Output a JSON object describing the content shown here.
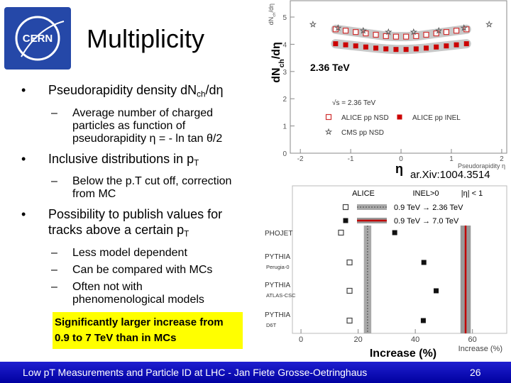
{
  "logo": {
    "text": "CERN"
  },
  "title": "Multiplicity",
  "bullets": [
    {
      "text": "Pseudorapidity density dN",
      "sub": "ch",
      "tail": "/dη",
      "items": [
        "Average number of charged particles as function of pseudorapidity η = - ln tan θ/2"
      ]
    },
    {
      "text": "Inclusive distributions in p",
      "sub": "T",
      "items": [
        "Below the p.T cut off, correction from MC"
      ]
    },
    {
      "text": "Possibility to publish values for tracks above a certain p",
      "sub": "T",
      "items": [
        "Less model dependent",
        "Can be compared with MCs",
        "Often not with phenomenological models"
      ]
    }
  ],
  "callout": "Significantly larger increase from 0.9 to 7 TeV than in MCs",
  "footer": {
    "text": "Low pT Measurements and Particle ID at LHC - Jan Fiete Grosse-Oetringhaus",
    "page": "26"
  },
  "chart_data": [
    {
      "type": "scatter",
      "ylabel": {
        "text": "dN",
        "sub": "ch",
        "tail": "/dη"
      },
      "side_label": {
        "text": "dN",
        "sub": "ch",
        "tail": "/dη"
      },
      "xlabel": "Pseudorapidity η",
      "energy_label": "2.36 TeV",
      "eta_label": "η",
      "reference": "ar.Xiv:1004.3514",
      "legend_title": "√s = 2.36 TeV",
      "xlim": [
        -2.2,
        2.1
      ],
      "ylim": [
        0,
        5.6
      ],
      "xticks": [
        -2,
        -1,
        0,
        1,
        2
      ],
      "yticks": [
        0,
        1,
        2,
        3,
        4,
        5
      ],
      "series": [
        {
          "name": "ALICE pp NSD",
          "marker": "open-square",
          "color": "#d03030",
          "band_color": "#c8c8c8",
          "x": [
            -1.3,
            -1.1,
            -0.9,
            -0.7,
            -0.5,
            -0.3,
            -0.1,
            0.1,
            0.3,
            0.5,
            0.7,
            0.9,
            1.1,
            1.3
          ],
          "values": [
            4.55,
            4.5,
            4.45,
            4.4,
            4.35,
            4.3,
            4.28,
            4.28,
            4.3,
            4.35,
            4.4,
            4.45,
            4.5,
            4.55
          ]
        },
        {
          "name": "ALICE pp INEL",
          "marker": "filled-square",
          "color": "#cc0000",
          "band_color": "#c8c8c8",
          "x": [
            -1.3,
            -1.1,
            -0.9,
            -0.7,
            -0.5,
            -0.3,
            -0.1,
            0.1,
            0.3,
            0.5,
            0.7,
            0.9,
            1.1,
            1.3
          ],
          "values": [
            4.02,
            3.98,
            3.94,
            3.9,
            3.86,
            3.83,
            3.81,
            3.81,
            3.83,
            3.86,
            3.9,
            3.94,
            3.98,
            4.02
          ]
        },
        {
          "name": "CMS pp NSD",
          "marker": "star",
          "color": "#555555",
          "x": [
            -1.75,
            -1.25,
            -0.75,
            -0.25,
            0.25,
            0.75,
            1.25,
            1.75
          ],
          "values": [
            4.73,
            4.6,
            4.5,
            4.45,
            4.45,
            4.5,
            4.6,
            4.73
          ]
        }
      ]
    },
    {
      "type": "dot",
      "header": [
        "ALICE",
        "INEL>0",
        "|η| < 1"
      ],
      "xlim": [
        -3,
        72
      ],
      "xticks": [
        0,
        20,
        40,
        60
      ],
      "xlabel": "Increase (%)",
      "annotation": "Increase (%)",
      "categories": [
        "PHOJET",
        "PYTHIA",
        "PYTHIA",
        "PYTHIA"
      ],
      "tunes": [
        null,
        "Perugia-0",
        "ATLAS-CSC",
        "D6T"
      ],
      "series": [
        {
          "name": "0.9 TeV → 2.36 TeV",
          "marker": "open-square",
          "color": "#444444",
          "band_color": "#a8a8a8",
          "line_color": "#555555",
          "values": [
            14,
            17,
            17,
            17
          ],
          "alice": 23.3,
          "alice_error": 1.3
        },
        {
          "name": "0.9 TeV → 7.0 TeV",
          "marker": "filled-square",
          "color": "#111111",
          "band_color": "#999999",
          "line_color": "#c00000",
          "values": [
            32.8,
            43,
            47.3,
            42.8
          ],
          "alice": 57.6,
          "alice_error": 1.8
        }
      ]
    }
  ]
}
